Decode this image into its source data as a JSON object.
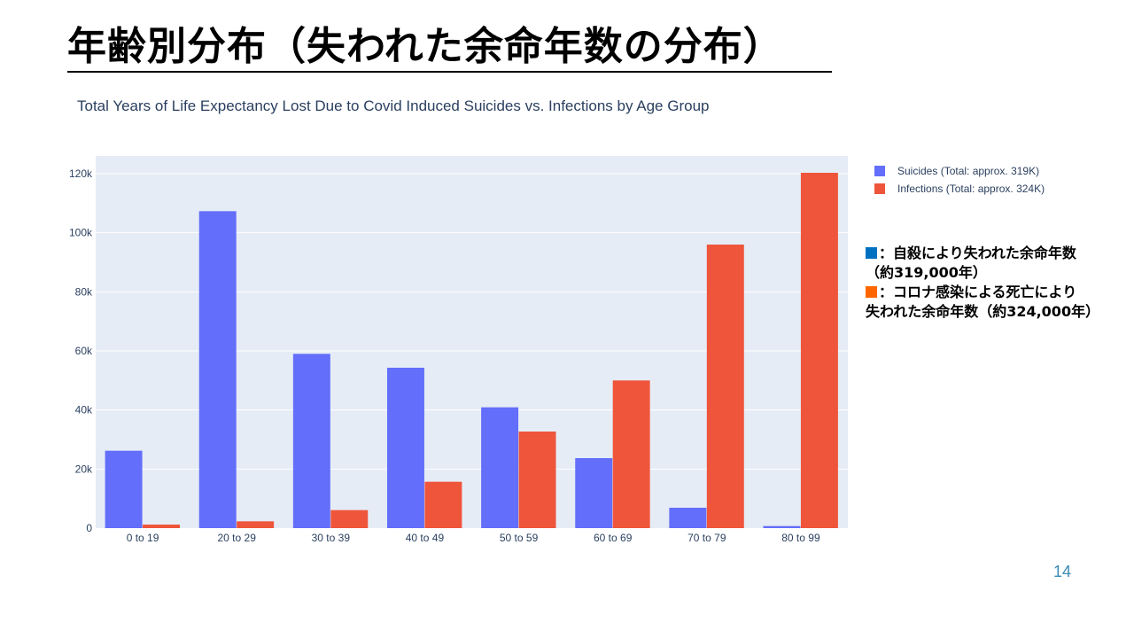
{
  "slide": {
    "title": "年齢別分布（失われた余命年数の分布）",
    "page_number": "14"
  },
  "notes": {
    "suicide_swatch_color": "#0070c0",
    "infection_swatch_color": "#ff6600",
    "suicide_line1": "：自殺により失われた余命年数",
    "suicide_line2": "（約319,000年）",
    "infection_line1": "：コロナ感染による死亡により",
    "infection_line2": "失われた余命年数（約324,000年）"
  },
  "chart_data": {
    "type": "bar",
    "title": "Total Years of Life Expectancy Lost Due to Covid Induced Suicides vs. Infections by Age Group",
    "categories": [
      "0 to 19",
      "20 to 29",
      "30 to 39",
      "40 to 49",
      "50 to 59",
      "60 to 69",
      "70 to 79",
      "80 to 99"
    ],
    "series": [
      {
        "name": "Suicides (Total: approx. 319K)",
        "color": "#636efa",
        "values": [
          26200,
          107300,
          59000,
          54300,
          40900,
          23700,
          6900,
          700
        ]
      },
      {
        "name": "Infections (Total: approx. 324K)",
        "color": "#ef553b",
        "values": [
          1200,
          2300,
          6100,
          15700,
          32700,
          50000,
          96000,
          120300
        ]
      }
    ],
    "xlabel": "",
    "ylabel": "",
    "ylim": [
      0,
      126000
    ],
    "yticks": [
      0,
      20000,
      40000,
      60000,
      80000,
      100000,
      120000
    ],
    "ytick_labels": [
      "0",
      "20k",
      "40k",
      "60k",
      "80k",
      "100k",
      "120k"
    ],
    "grid": true,
    "legend_position": "top-right",
    "plot_background": "#e5ecf6"
  }
}
